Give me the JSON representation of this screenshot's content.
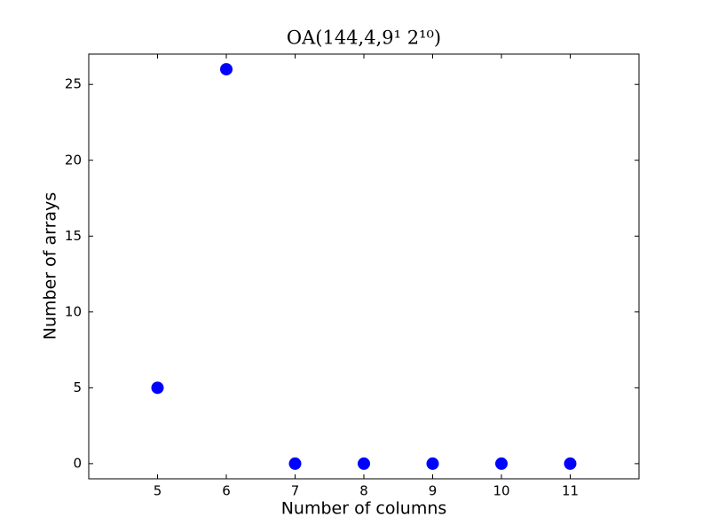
{
  "chart_data": {
    "type": "scatter",
    "title": "OA(144,4,9¹ 2¹⁰)",
    "x_label": "Number of columns",
    "y_label": "Number of arrays",
    "x": [
      5,
      6,
      7,
      8,
      9,
      10,
      11
    ],
    "values": [
      5,
      26,
      0,
      0,
      0,
      0,
      0
    ],
    "color": "#0000ff",
    "xlim": [
      4,
      12
    ],
    "xticks": [
      5,
      6,
      7,
      8,
      9,
      10,
      11
    ],
    "ylim": [
      -1,
      27
    ],
    "yticks": [
      0,
      5,
      10,
      15,
      20,
      25
    ]
  }
}
